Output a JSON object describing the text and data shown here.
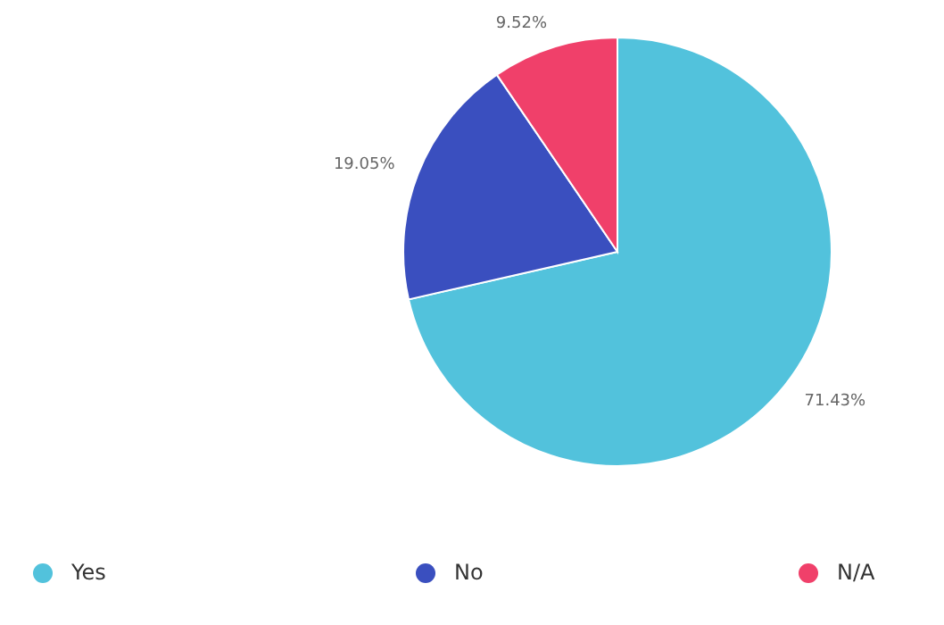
{
  "chart_data": {
    "type": "pie",
    "categories": [
      "Yes",
      "No",
      "N/A"
    ],
    "values": [
      71.43,
      19.05,
      9.52
    ],
    "value_labels": [
      "71.43%",
      "19.05%",
      "9.52%"
    ],
    "colors": [
      "#52c2dc",
      "#3a4fbf",
      "#f0406a"
    ],
    "legend": "bottom"
  }
}
